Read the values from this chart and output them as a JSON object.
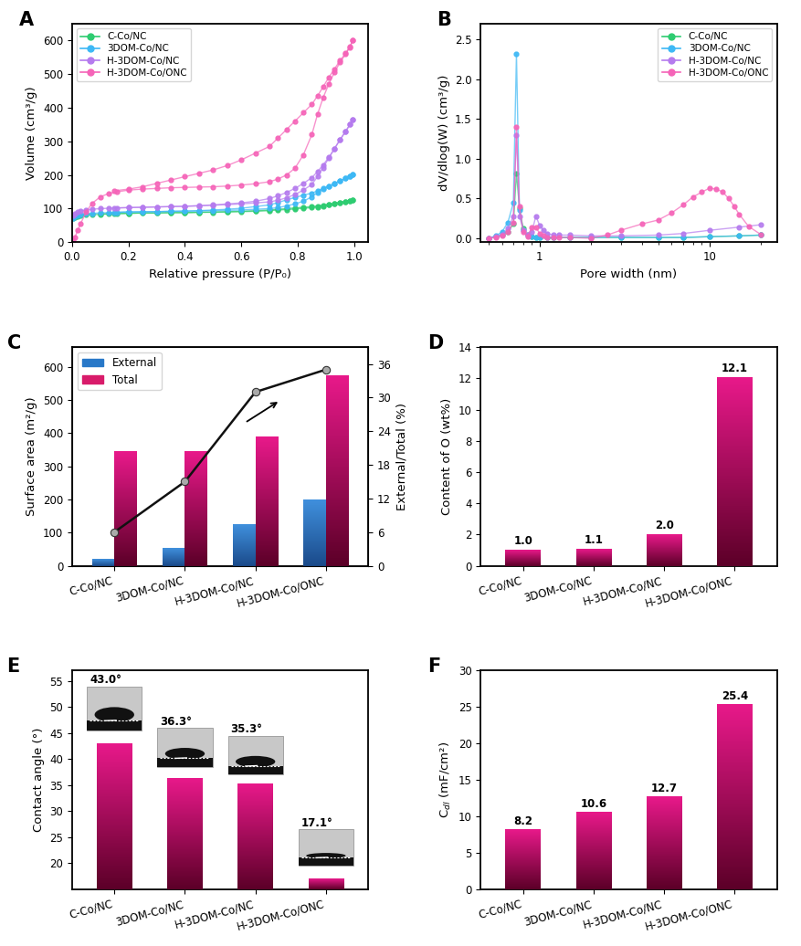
{
  "panel_A": {
    "xlabel": "Relative pressure (P/P₀)",
    "ylabel": "Volume (cm³/g)",
    "ylim": [
      0,
      650
    ],
    "xlim": [
      0,
      1.05
    ],
    "series": {
      "C-Co/NC": {
        "color": "#2ecc71",
        "adsorption_x": [
          0.005,
          0.01,
          0.02,
          0.03,
          0.05,
          0.07,
          0.1,
          0.13,
          0.16,
          0.2,
          0.25,
          0.3,
          0.35,
          0.4,
          0.45,
          0.5,
          0.55,
          0.6,
          0.65,
          0.7,
          0.73,
          0.76,
          0.79,
          0.82,
          0.85,
          0.87,
          0.89,
          0.91,
          0.93,
          0.95,
          0.97,
          0.985,
          0.995
        ],
        "adsorption_y": [
          70,
          74,
          77,
          79,
          81,
          82,
          83,
          84,
          85,
          86,
          87,
          87,
          88,
          88,
          89,
          89,
          90,
          91,
          92,
          94,
          96,
          97,
          99,
          101,
          103,
          105,
          108,
          111,
          115,
          118,
          121,
          123,
          125
        ],
        "desorption_x": [
          0.995,
          0.985,
          0.97,
          0.95,
          0.93,
          0.91,
          0.89,
          0.87,
          0.85,
          0.82,
          0.79,
          0.76,
          0.73,
          0.7,
          0.65,
          0.6,
          0.55,
          0.5,
          0.45,
          0.4,
          0.35,
          0.3,
          0.25,
          0.2,
          0.15,
          0.1
        ],
        "desorption_y": [
          125,
          123,
          121,
          118,
          115,
          112,
          110,
          108,
          106,
          104,
          102,
          100,
          98,
          96,
          94,
          92,
          91,
          90,
          89,
          88,
          88,
          87,
          87,
          86,
          85,
          84
        ]
      },
      "3DOM-Co/NC": {
        "color": "#3db8f5",
        "adsorption_x": [
          0.005,
          0.01,
          0.02,
          0.03,
          0.05,
          0.07,
          0.1,
          0.13,
          0.16,
          0.2,
          0.25,
          0.3,
          0.35,
          0.4,
          0.45,
          0.5,
          0.55,
          0.6,
          0.65,
          0.7,
          0.73,
          0.76,
          0.79,
          0.82,
          0.85,
          0.87,
          0.89,
          0.91,
          0.93,
          0.95,
          0.97,
          0.985,
          0.995
        ],
        "adsorption_y": [
          72,
          76,
          80,
          83,
          85,
          86,
          87,
          88,
          89,
          90,
          91,
          91,
          92,
          92,
          93,
          94,
          95,
          96,
          98,
          100,
          103,
          108,
          114,
          122,
          135,
          147,
          158,
          166,
          175,
          183,
          190,
          196,
          202
        ],
        "desorption_x": [
          0.995,
          0.985,
          0.97,
          0.95,
          0.93,
          0.91,
          0.89,
          0.87,
          0.85,
          0.82,
          0.79,
          0.76,
          0.73,
          0.7,
          0.65,
          0.6,
          0.55,
          0.5,
          0.45,
          0.4,
          0.35,
          0.3,
          0.25,
          0.2,
          0.15
        ],
        "desorption_y": [
          202,
          197,
          190,
          183,
          175,
          167,
          160,
          153,
          146,
          140,
          133,
          126,
          118,
          111,
          106,
          101,
          98,
          96,
          94,
          93,
          92,
          91,
          90,
          90,
          89
        ]
      },
      "H-3DOM-Co/NC": {
        "color": "#b57bee",
        "adsorption_x": [
          0.005,
          0.01,
          0.02,
          0.03,
          0.05,
          0.07,
          0.1,
          0.13,
          0.16,
          0.2,
          0.25,
          0.3,
          0.35,
          0.4,
          0.45,
          0.5,
          0.55,
          0.6,
          0.65,
          0.7,
          0.73,
          0.76,
          0.79,
          0.82,
          0.85,
          0.87,
          0.89,
          0.91,
          0.93,
          0.95,
          0.97,
          0.985,
          0.995
        ],
        "adsorption_y": [
          80,
          85,
          90,
          93,
          96,
          98,
          100,
          101,
          102,
          103,
          104,
          105,
          106,
          107,
          108,
          110,
          112,
          114,
          117,
          120,
          125,
          132,
          142,
          155,
          172,
          195,
          222,
          250,
          278,
          305,
          330,
          350,
          365
        ],
        "desorption_x": [
          0.995,
          0.985,
          0.97,
          0.95,
          0.93,
          0.91,
          0.89,
          0.87,
          0.85,
          0.82,
          0.79,
          0.76,
          0.73,
          0.7,
          0.65,
          0.6,
          0.55,
          0.5,
          0.45,
          0.4,
          0.35,
          0.3,
          0.25,
          0.2,
          0.15
        ],
        "desorption_y": [
          365,
          350,
          330,
          305,
          278,
          252,
          230,
          210,
          192,
          175,
          160,
          148,
          138,
          130,
          122,
          117,
          114,
          111,
          109,
          107,
          106,
          105,
          104,
          103,
          102
        ]
      },
      "H-3DOM-Co/ONC": {
        "color": "#f564b8",
        "adsorption_x": [
          0.005,
          0.01,
          0.02,
          0.03,
          0.05,
          0.07,
          0.1,
          0.13,
          0.16,
          0.2,
          0.25,
          0.3,
          0.35,
          0.4,
          0.45,
          0.5,
          0.55,
          0.6,
          0.65,
          0.7,
          0.73,
          0.76,
          0.79,
          0.82,
          0.85,
          0.87,
          0.89,
          0.91,
          0.93,
          0.95,
          0.97,
          0.985,
          0.995
        ],
        "adsorption_y": [
          5,
          15,
          35,
          55,
          90,
          115,
          135,
          145,
          150,
          155,
          158,
          160,
          162,
          163,
          164,
          165,
          167,
          170,
          174,
          180,
          188,
          200,
          220,
          260,
          320,
          380,
          430,
          470,
          505,
          535,
          560,
          580,
          600
        ],
        "desorption_x": [
          0.995,
          0.985,
          0.97,
          0.95,
          0.93,
          0.91,
          0.89,
          0.87,
          0.85,
          0.82,
          0.79,
          0.76,
          0.73,
          0.7,
          0.65,
          0.6,
          0.55,
          0.5,
          0.45,
          0.4,
          0.35,
          0.3,
          0.25,
          0.2,
          0.15
        ],
        "desorption_y": [
          600,
          582,
          562,
          540,
          515,
          490,
          462,
          435,
          410,
          385,
          360,
          335,
          310,
          285,
          265,
          245,
          228,
          215,
          205,
          195,
          185,
          175,
          165,
          158,
          153
        ]
      }
    }
  },
  "panel_B": {
    "xlabel": "Pore width (nm)",
    "ylabel": "dV/dlog(W) (cm³/g)",
    "ylim": [
      -0.05,
      2.7
    ],
    "xlim_log": [
      0.45,
      25
    ],
    "series": {
      "C-Co/NC": {
        "color": "#2ecc71",
        "x": [
          0.5,
          0.55,
          0.6,
          0.65,
          0.7,
          0.73,
          0.76,
          0.8,
          0.85,
          0.9,
          0.95,
          1.0,
          1.1,
          1.2,
          1.5,
          2.0,
          3.0,
          5.0,
          7.0,
          10.0,
          15.0,
          20.0
        ],
        "y": [
          0.0,
          0.02,
          0.04,
          0.08,
          0.18,
          0.82,
          0.38,
          0.12,
          0.04,
          0.02,
          0.01,
          0.01,
          0.01,
          0.01,
          0.01,
          0.01,
          0.01,
          0.01,
          0.01,
          0.02,
          0.03,
          0.04
        ]
      },
      "3DOM-Co/NC": {
        "color": "#3db8f5",
        "x": [
          0.5,
          0.55,
          0.6,
          0.65,
          0.7,
          0.73,
          0.76,
          0.8,
          0.85,
          0.9,
          0.95,
          1.0,
          1.1,
          1.2,
          1.5,
          2.0,
          3.0,
          5.0,
          7.0,
          10.0,
          15.0,
          20.0
        ],
        "y": [
          0.0,
          0.03,
          0.08,
          0.2,
          0.45,
          2.32,
          0.35,
          0.1,
          0.03,
          0.02,
          0.01,
          0.01,
          0.01,
          0.01,
          0.01,
          0.01,
          0.01,
          0.01,
          0.01,
          0.02,
          0.03,
          0.04
        ]
      },
      "H-3DOM-Co/NC": {
        "color": "#b57bee",
        "x": [
          0.5,
          0.55,
          0.6,
          0.65,
          0.7,
          0.73,
          0.76,
          0.8,
          0.85,
          0.9,
          0.95,
          1.0,
          1.05,
          1.1,
          1.2,
          1.3,
          1.5,
          2.0,
          3.0,
          5.0,
          7.0,
          10.0,
          15.0,
          20.0
        ],
        "y": [
          0.0,
          0.02,
          0.05,
          0.12,
          0.28,
          1.3,
          0.28,
          0.1,
          0.05,
          0.08,
          0.28,
          0.16,
          0.1,
          0.06,
          0.04,
          0.04,
          0.04,
          0.03,
          0.03,
          0.04,
          0.06,
          0.1,
          0.14,
          0.17
        ]
      },
      "H-3DOM-Co/ONC": {
        "color": "#f564b8",
        "x": [
          0.5,
          0.55,
          0.6,
          0.65,
          0.7,
          0.73,
          0.76,
          0.8,
          0.85,
          0.9,
          0.95,
          1.0,
          1.05,
          1.1,
          1.2,
          1.3,
          1.5,
          2.0,
          2.5,
          3.0,
          4.0,
          5.0,
          6.0,
          7.0,
          8.0,
          9.0,
          10.0,
          11.0,
          12.0,
          13.0,
          14.0,
          15.0,
          17.0,
          20.0
        ],
        "y": [
          0.0,
          0.01,
          0.03,
          0.08,
          0.2,
          1.4,
          0.4,
          0.08,
          0.02,
          0.14,
          0.14,
          0.06,
          0.03,
          0.01,
          0.01,
          0.01,
          0.01,
          0.0,
          0.04,
          0.1,
          0.18,
          0.23,
          0.32,
          0.42,
          0.52,
          0.58,
          0.63,
          0.62,
          0.58,
          0.5,
          0.4,
          0.3,
          0.15,
          0.05
        ]
      }
    }
  },
  "panel_C": {
    "ylabel_left": "Surface area (m²/g)",
    "ylabel_right": "External/Total (%)",
    "categories": [
      "C-Co/NC",
      "3DOM-Co/NC",
      "H-3DOM-Co/NC",
      "H-3DOM-Co/ONC"
    ],
    "external_values": [
      20,
      55,
      125,
      200
    ],
    "total_values": [
      345,
      347,
      390,
      575
    ],
    "ratio_values": [
      6,
      15,
      31,
      35
    ],
    "ylim_left": [
      0,
      660
    ],
    "ylim_right": [
      0,
      39
    ],
    "bar_color_external": "#2878c8",
    "bar_color_total": "#d81b6a",
    "line_color": "#111111"
  },
  "panel_D": {
    "ylabel": "Content of O (wt%)",
    "categories": [
      "C-Co/NC",
      "3DOM-Co/NC",
      "H-3DOM-Co/NC",
      "H-3DOM-Co/ONC"
    ],
    "values": [
      1.0,
      1.1,
      2.0,
      12.1
    ],
    "ylim": [
      0,
      14
    ],
    "yticks": [
      0,
      2,
      4,
      6,
      8,
      10,
      12,
      14
    ]
  },
  "panel_E": {
    "ylabel": "Contact angle (°)",
    "categories": [
      "C-Co/NC",
      "3DOM-Co/NC",
      "H-3DOM-Co/NC",
      "H-3DOM-Co/ONC"
    ],
    "values": [
      43.0,
      36.3,
      35.3,
      17.1
    ],
    "ylim": [
      15,
      57
    ],
    "yticks": [
      20,
      25,
      30,
      35,
      40,
      45,
      50,
      55
    ]
  },
  "panel_F": {
    "ylabel": "C$_{dl}$ (mF/cm²)",
    "categories": [
      "C-Co/NC",
      "3DOM-Co/NC",
      "H-3DOM-Co/NC",
      "H-3DOM-Co/ONC"
    ],
    "values": [
      8.2,
      10.6,
      12.7,
      25.4
    ],
    "ylim": [
      0,
      30
    ],
    "yticks": [
      0,
      5,
      10,
      15,
      20,
      25,
      30
    ]
  },
  "colors": {
    "C-Co/NC": "#2ecc71",
    "3DOM-Co/NC": "#3db8f5",
    "H-3DOM-Co/NC": "#b57bee",
    "H-3DOM-Co/ONC": "#f564b8"
  },
  "bar_color_top": "#d81b6a",
  "bar_color_bottom": "#6b0030"
}
